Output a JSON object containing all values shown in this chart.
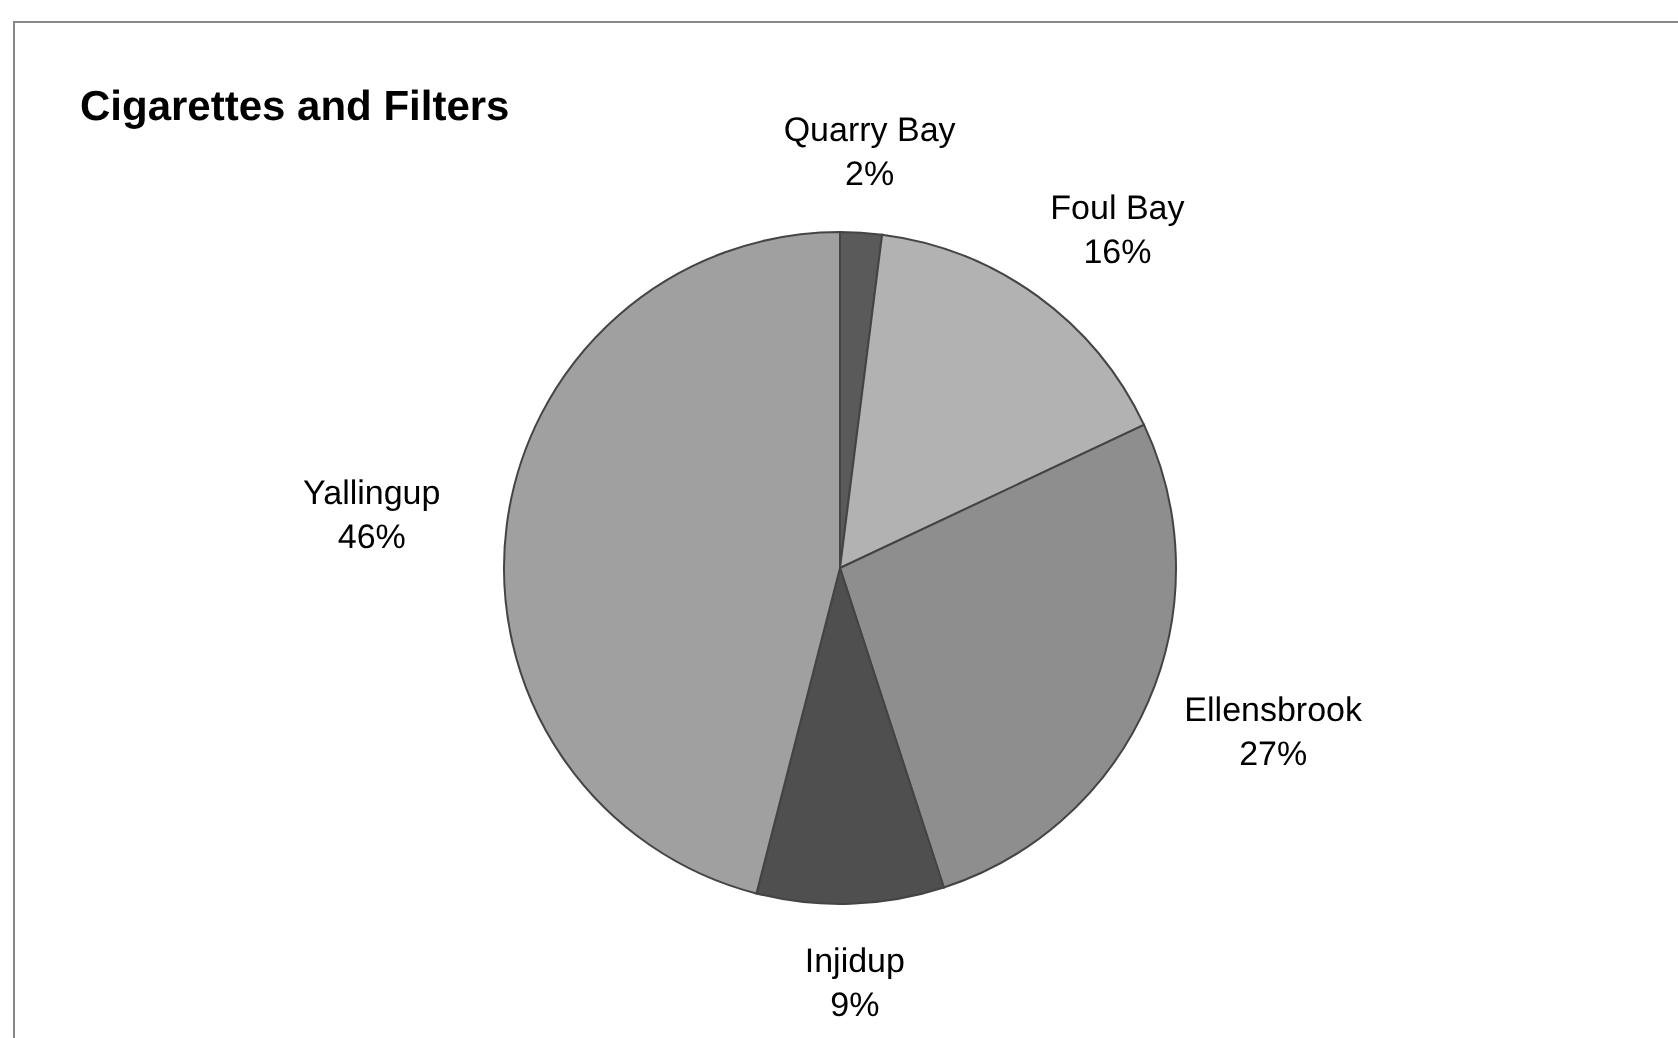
{
  "chart_data": {
    "type": "pie",
    "title": "Cigarettes and Filters",
    "categories": [
      "Quarry Bay",
      "Foul Bay",
      "Ellensbrook",
      "Injidup",
      "Yallingup"
    ],
    "values": [
      2,
      16,
      27,
      9,
      46
    ],
    "value_labels": [
      "2%",
      "16%",
      "27%",
      "9%",
      "46%"
    ],
    "colors": [
      "#5a5a5a",
      "#b2b2b2",
      "#8e8e8e",
      "#4f4f4f",
      "#a0a0a0"
    ]
  }
}
